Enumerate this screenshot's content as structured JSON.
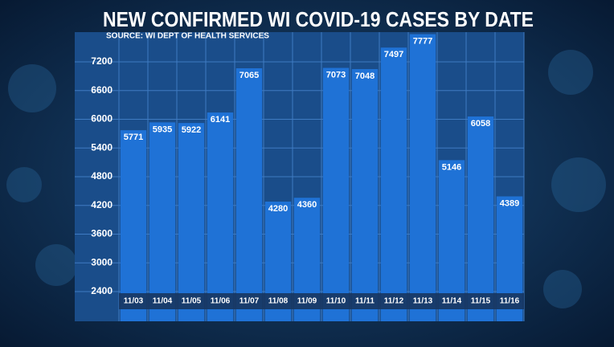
{
  "chart_data": {
    "type": "bar",
    "title": "NEW CONFIRMED WI COVID-19 CASES BY DATE",
    "subtitle": "SOURCE: WI DEPT OF HEALTH SERVICES",
    "categories": [
      "11/03",
      "11/04",
      "11/05",
      "11/06",
      "11/07",
      "11/08",
      "11/09",
      "11/10",
      "11/11",
      "11/12",
      "11/13",
      "11/14",
      "11/15",
      "11/16"
    ],
    "values": [
      5771,
      5935,
      5922,
      6141,
      7065,
      4280,
      4360,
      7073,
      7048,
      7497,
      7777,
      5146,
      6058,
      4389
    ],
    "color": "#1f72d6",
    "ylim": [
      1780,
      7820
    ],
    "yticks": [
      2400,
      3000,
      3600,
      4200,
      4800,
      5400,
      6000,
      6600,
      7200
    ],
    "grid": true
  }
}
